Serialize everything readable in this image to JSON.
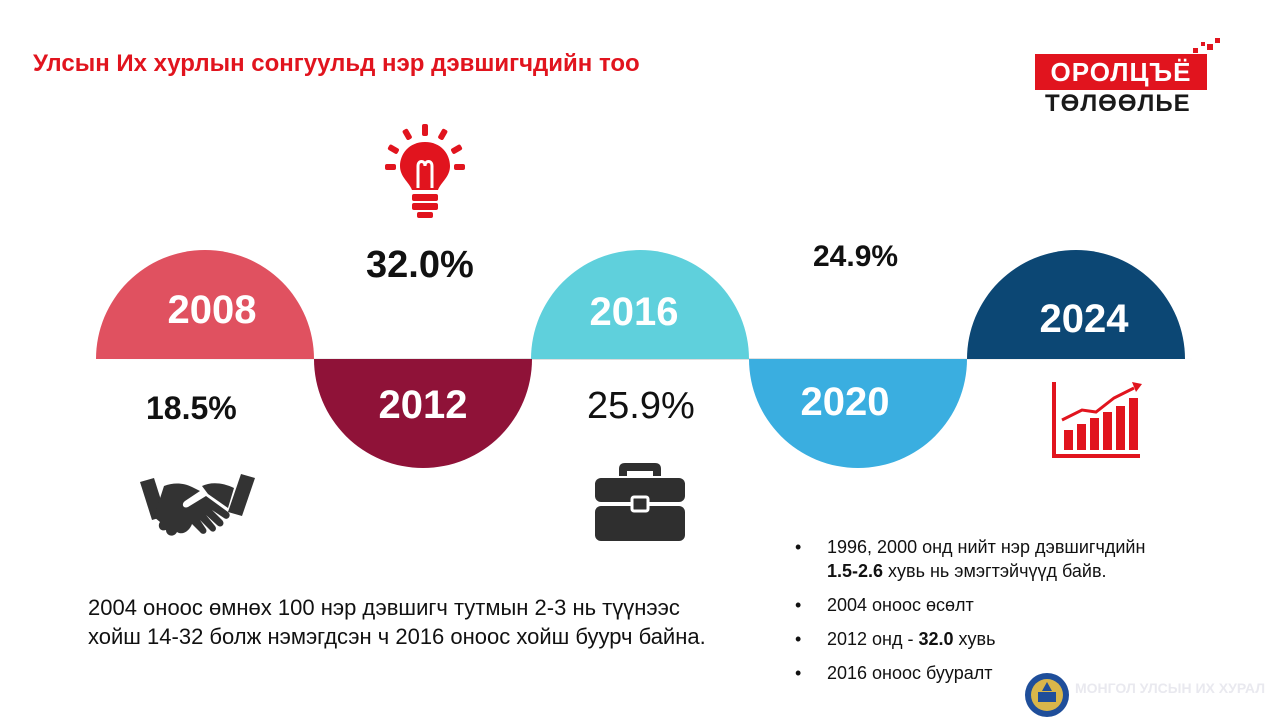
{
  "title": "Улсын Их хурлын сонгуульд нэр дэвшигчдийн тоо",
  "logo": {
    "top": "ОРОЛЦЪЁ",
    "bottom": "ТӨЛӨӨЛЬЕ"
  },
  "timeline": [
    {
      "year": "2008",
      "color": "#e05160",
      "value": "18.5%"
    },
    {
      "year": "2012",
      "color": "#8f1238",
      "value": "32.0%"
    },
    {
      "year": "2016",
      "color": "#5fd0dc",
      "value": "25.9%"
    },
    {
      "year": "2020",
      "color": "#3aaee0",
      "value": "24.9%"
    },
    {
      "year": "2024",
      "color": "#0c4774"
    }
  ],
  "icons": [
    "lightbulb-icon",
    "handshake-icon",
    "briefcase-icon",
    "growth-chart-icon"
  ],
  "paragraph": "2004 оноос өмнөх 100 нэр дэвшигч тутмын 2-3 нь түүнээс хойш 14-32 болж нэмэгдсэн ч 2016 оноос хойш буурч байна.",
  "bullets": {
    "b1": {
      "pre": "1996, 2000 онд нийт нэр дэвшигчдийн",
      "bold": "1.5-2.6",
      "post": " хувь нь эмэгтэйчүүд байв."
    },
    "b2": "2004 оноос өсөлт",
    "b3": {
      "pre": "2012 онд - ",
      "bold": "32.0",
      "post": " хувь"
    },
    "b4": "2016 оноос бууралт"
  },
  "bullet_char": "•",
  "footer": "МОНГОЛ УЛСЫН ИХ ХУРАЛ"
}
